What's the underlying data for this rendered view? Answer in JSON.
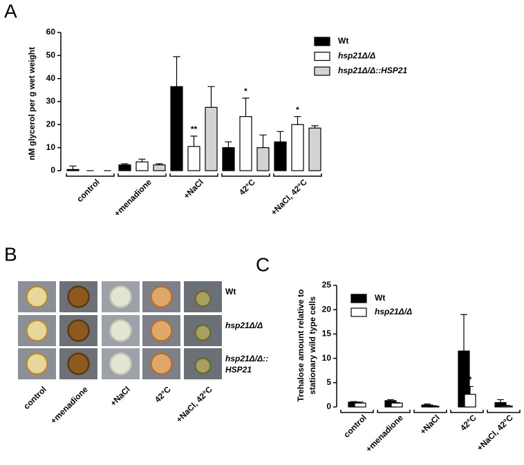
{
  "chart_data": [
    {
      "type": "bar",
      "panel_label": "A",
      "ylabel": "nM glycerol per g wet weight",
      "categories": [
        "control",
        "+menadione",
        "+NaCl",
        "42°C",
        "+NaCl, 42°C"
      ],
      "ylim": [
        0,
        60
      ],
      "yticks": [
        0,
        10,
        20,
        30,
        40,
        50,
        60
      ],
      "series": [
        {
          "name": "Wt",
          "color": "#000000",
          "values": [
            0.5,
            2.5,
            36.5,
            10,
            12.5
          ],
          "errors": [
            1.5,
            0.5,
            13,
            2.5,
            4.5
          ]
        },
        {
          "name": "hsp21Δ/Δ",
          "color": "#ffffff",
          "values": [
            0,
            3.8,
            10.5,
            23.5,
            20
          ],
          "errors": [
            0,
            1.2,
            4.5,
            8,
            3.5
          ]
        },
        {
          "name": "hsp21Δ/Δ::HSP21",
          "color": "#d3d3d3",
          "values": [
            0,
            2.5,
            27.5,
            10,
            18.5
          ],
          "errors": [
            0,
            0.5,
            9,
            5.5,
            1
          ]
        }
      ],
      "annotations": [
        {
          "text": "**",
          "category": "+NaCl",
          "series": "hsp21Δ/Δ"
        },
        {
          "text": "*",
          "category": "42°C",
          "series": "hsp21Δ/Δ"
        },
        {
          "text": "*",
          "category": "+NaCl, 42°C",
          "series": "hsp21Δ/Δ"
        }
      ]
    },
    {
      "type": "bar",
      "panel_label": "C",
      "ylabel": [
        "Trehalose amount relative to",
        "stationary wild type cells"
      ],
      "categories": [
        "control",
        "+menadione",
        "+NaCl",
        "42°C",
        "+NaCl, 42°C"
      ],
      "ylim": [
        0,
        25
      ],
      "yticks": [
        0,
        5,
        10,
        15,
        20,
        25
      ],
      "series": [
        {
          "name": "Wt",
          "color": "#000000",
          "values": [
            1.0,
            1.3,
            0.4,
            11.5,
            0.9
          ],
          "errors": [
            0.1,
            0.2,
            0.2,
            7.5,
            0.6
          ]
        },
        {
          "name": "hsp21Δ/Δ",
          "color": "#ffffff",
          "values": [
            0.8,
            0.8,
            0.15,
            2.6,
            0.2
          ],
          "errors": [
            0.2,
            0.1,
            0.1,
            1.6,
            0.1
          ]
        }
      ],
      "annotations": [
        {
          "text": "*",
          "category": "42°C",
          "series": "hsp21Δ/Δ"
        }
      ]
    }
  ],
  "panel_b": {
    "panel_label": "B",
    "columns": [
      "control",
      "+menadione",
      "+NaCl",
      "42°C",
      "+NaCl, 42°C"
    ],
    "rows": [
      "Wt",
      "hsp21Δ/Δ",
      "hsp21Δ/Δ::\nHSP21"
    ]
  }
}
